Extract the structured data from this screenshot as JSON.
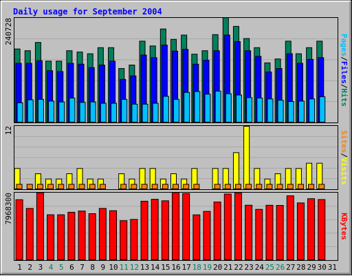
{
  "chart_data": {
    "title": "Daily usage for September 2004",
    "type": "bar",
    "grid": true,
    "colors": {
      "panel_background": "#c0c0c0",
      "outer_background": "#c0c0c0",
      "hits": "#00805c",
      "files": "#0000ff",
      "pages": "#00c0ff",
      "visits": "#ffff00",
      "sites": "#ff8000",
      "kbytes": "#ff0000",
      "weekend_label": "#00805c",
      "weekday_label": "#000000",
      "title": "#0000ff"
    },
    "categories": [
      "1",
      "2",
      "3",
      "4",
      "5",
      "6",
      "7",
      "8",
      "9",
      "10",
      "11",
      "12",
      "13",
      "14",
      "15",
      "16",
      "17",
      "18",
      "19",
      "20",
      "21",
      "22",
      "23",
      "24",
      "25",
      "26",
      "27",
      "28",
      "29",
      "30",
      "31"
    ],
    "weekend_days": [
      "4",
      "5",
      "11",
      "12",
      "18",
      "19",
      "25",
      "26"
    ],
    "panels": [
      {
        "name": "hits_files_pages",
        "ymax_label": "240728",
        "ymax": 240728,
        "legend": [
          "Pages",
          "/",
          "Files",
          "/",
          "Hits"
        ],
        "series": [
          {
            "name": "Hits",
            "values": [
              170000,
              166000,
              185000,
              142000,
              142000,
              166000,
              163000,
              159000,
              173000,
              173000,
              125000,
              133000,
              188000,
              177000,
              216000,
              192000,
              202000,
              158000,
              166000,
              203000,
              242000,
              222000,
              194000,
              173000,
              138000,
              147000,
              188000,
              159000,
              173000,
              188000,
              0
            ]
          },
          {
            "name": "Files",
            "values": [
              137000,
              137000,
              143000,
              120000,
              118000,
              137000,
              135000,
              127000,
              133000,
              142000,
              100000,
              108000,
              156000,
              150000,
              179000,
              165000,
              169000,
              135000,
              144000,
              166000,
              202000,
              187000,
              166000,
              153000,
              117000,
              125000,
              159000,
              137000,
              146000,
              150000,
              0
            ]
          },
          {
            "name": "Pages",
            "values": [
              46000,
              53000,
              54000,
              50000,
              48000,
              57000,
              47000,
              48000,
              45000,
              45000,
              54000,
              43000,
              43000,
              45000,
              61000,
              54000,
              70000,
              72000,
              66000,
              73000,
              67000,
              64000,
              58000,
              57000,
              55000,
              52000,
              49000,
              50000,
              55000,
              60000,
              0
            ]
          }
        ]
      },
      {
        "name": "visits_sites",
        "ymax_label": "12",
        "ymax": 12,
        "legend": [
          "Sites",
          "/",
          "Visits"
        ],
        "series": [
          {
            "name": "Visits",
            "values": [
              4,
              0,
              3,
              2,
              2,
              3,
              4,
              2,
              2,
              0,
              3,
              2,
              4,
              4,
              2,
              3,
              2,
              4,
              0,
              4,
              4,
              7,
              12,
              4,
              2,
              3,
              4,
              4,
              5,
              5,
              0
            ]
          },
          {
            "name": "Sites",
            "values": [
              1,
              1,
              1,
              1,
              1,
              1,
              1,
              1,
              1,
              0,
              1,
              1,
              1,
              1,
              1,
              1,
              1,
              1,
              0,
              1,
              1,
              1,
              1,
              1,
              1,
              1,
              1,
              1,
              1,
              1,
              0
            ]
          }
        ]
      },
      {
        "name": "kbytes",
        "ymax_label": "7968300",
        "ymax": 7968300,
        "legend": [
          "KBytes"
        ],
        "series": [
          {
            "name": "KBytes",
            "values": [
              7180000,
              6150000,
              8000000,
              5400000,
              5400000,
              5700000,
              5840000,
              5530000,
              6150000,
              5880000,
              4700000,
              4850000,
              7000000,
              7230000,
              7050000,
              8020000,
              7900000,
              5390000,
              5800000,
              6910000,
              7850000,
              7950000,
              6530000,
              6040000,
              6520000,
              6500000,
              7640000,
              6800000,
              7300000,
              7200000,
              0
            ]
          }
        ]
      }
    ]
  }
}
